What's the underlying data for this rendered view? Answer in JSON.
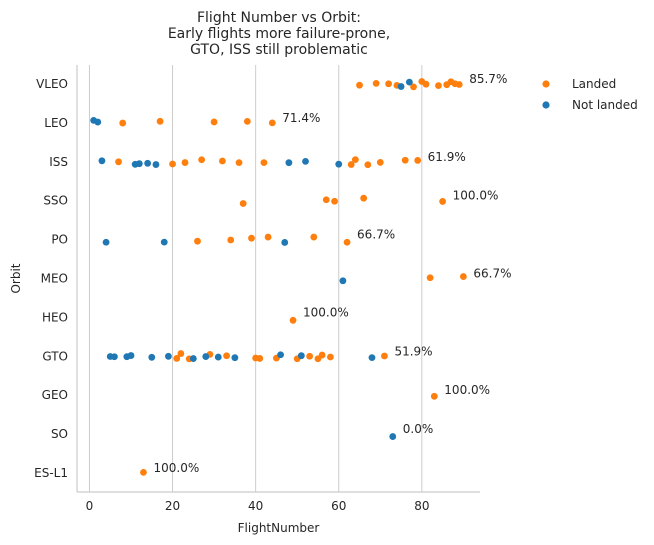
{
  "chart_data": {
    "type": "scatter",
    "title": [
      "Flight Number vs Orbit:",
      "Early flights more failure-prone,",
      "GTO, ISS still problematic"
    ],
    "xlabel": "FlightNumber",
    "ylabel": "Orbit",
    "xlim": [
      -3,
      94
    ],
    "xticks": [
      0,
      20,
      40,
      60,
      80
    ],
    "categories": [
      "VLEO",
      "LEO",
      "ISS",
      "SSO",
      "PO",
      "MEO",
      "HEO",
      "GTO",
      "GEO",
      "SO",
      "ES-L1"
    ],
    "grid": "vertical",
    "legend": "outside-right",
    "colors": {
      "Landed": "#ff7f0e",
      "Not landed": "#1f77b4"
    },
    "series": [
      {
        "name": "Landed",
        "points": [
          {
            "x": 65,
            "orbit": "VLEO"
          },
          {
            "x": 69,
            "orbit": "VLEO"
          },
          {
            "x": 72,
            "orbit": "VLEO"
          },
          {
            "x": 74,
            "orbit": "VLEO"
          },
          {
            "x": 78,
            "orbit": "VLEO"
          },
          {
            "x": 80,
            "orbit": "VLEO"
          },
          {
            "x": 81,
            "orbit": "VLEO"
          },
          {
            "x": 84,
            "orbit": "VLEO"
          },
          {
            "x": 86,
            "orbit": "VLEO"
          },
          {
            "x": 87,
            "orbit": "VLEO"
          },
          {
            "x": 88,
            "orbit": "VLEO"
          },
          {
            "x": 89,
            "orbit": "VLEO"
          },
          {
            "x": 8,
            "orbit": "LEO"
          },
          {
            "x": 17,
            "orbit": "LEO"
          },
          {
            "x": 30,
            "orbit": "LEO"
          },
          {
            "x": 38,
            "orbit": "LEO"
          },
          {
            "x": 44,
            "orbit": "LEO"
          },
          {
            "x": 7,
            "orbit": "ISS"
          },
          {
            "x": 20,
            "orbit": "ISS"
          },
          {
            "x": 23,
            "orbit": "ISS"
          },
          {
            "x": 27,
            "orbit": "ISS"
          },
          {
            "x": 32,
            "orbit": "ISS"
          },
          {
            "x": 36,
            "orbit": "ISS"
          },
          {
            "x": 42,
            "orbit": "ISS"
          },
          {
            "x": 63,
            "orbit": "ISS"
          },
          {
            "x": 64,
            "orbit": "ISS"
          },
          {
            "x": 67,
            "orbit": "ISS"
          },
          {
            "x": 70,
            "orbit": "ISS"
          },
          {
            "x": 76,
            "orbit": "ISS"
          },
          {
            "x": 79,
            "orbit": "ISS"
          },
          {
            "x": 37,
            "orbit": "SSO"
          },
          {
            "x": 57,
            "orbit": "SSO"
          },
          {
            "x": 59,
            "orbit": "SSO"
          },
          {
            "x": 66,
            "orbit": "SSO"
          },
          {
            "x": 85,
            "orbit": "SSO"
          },
          {
            "x": 26,
            "orbit": "PO"
          },
          {
            "x": 34,
            "orbit": "PO"
          },
          {
            "x": 39,
            "orbit": "PO"
          },
          {
            "x": 43,
            "orbit": "PO"
          },
          {
            "x": 54,
            "orbit": "PO"
          },
          {
            "x": 62,
            "orbit": "PO"
          },
          {
            "x": 82,
            "orbit": "MEO"
          },
          {
            "x": 90,
            "orbit": "MEO"
          },
          {
            "x": 49,
            "orbit": "HEO"
          },
          {
            "x": 21,
            "orbit": "GTO"
          },
          {
            "x": 22,
            "orbit": "GTO"
          },
          {
            "x": 24,
            "orbit": "GTO"
          },
          {
            "x": 29,
            "orbit": "GTO"
          },
          {
            "x": 33,
            "orbit": "GTO"
          },
          {
            "x": 40,
            "orbit": "GTO"
          },
          {
            "x": 41,
            "orbit": "GTO"
          },
          {
            "x": 45,
            "orbit": "GTO"
          },
          {
            "x": 50,
            "orbit": "GTO"
          },
          {
            "x": 53,
            "orbit": "GTO"
          },
          {
            "x": 55,
            "orbit": "GTO"
          },
          {
            "x": 56,
            "orbit": "GTO"
          },
          {
            "x": 58,
            "orbit": "GTO"
          },
          {
            "x": 71,
            "orbit": "GTO"
          },
          {
            "x": 83,
            "orbit": "GEO"
          },
          {
            "x": 13,
            "orbit": "ES-L1"
          }
        ]
      },
      {
        "name": "Not landed",
        "points": [
          {
            "x": 75,
            "orbit": "VLEO"
          },
          {
            "x": 77,
            "orbit": "VLEO"
          },
          {
            "x": 1,
            "orbit": "LEO"
          },
          {
            "x": 2,
            "orbit": "LEO"
          },
          {
            "x": 3,
            "orbit": "ISS"
          },
          {
            "x": 11,
            "orbit": "ISS"
          },
          {
            "x": 12,
            "orbit": "ISS"
          },
          {
            "x": 14,
            "orbit": "ISS"
          },
          {
            "x": 16,
            "orbit": "ISS"
          },
          {
            "x": 48,
            "orbit": "ISS"
          },
          {
            "x": 52,
            "orbit": "ISS"
          },
          {
            "x": 60,
            "orbit": "ISS"
          },
          {
            "x": 4,
            "orbit": "PO"
          },
          {
            "x": 18,
            "orbit": "PO"
          },
          {
            "x": 47,
            "orbit": "PO"
          },
          {
            "x": 61,
            "orbit": "MEO"
          },
          {
            "x": 5,
            "orbit": "GTO"
          },
          {
            "x": 6,
            "orbit": "GTO"
          },
          {
            "x": 9,
            "orbit": "GTO"
          },
          {
            "x": 10,
            "orbit": "GTO"
          },
          {
            "x": 15,
            "orbit": "GTO"
          },
          {
            "x": 19,
            "orbit": "GTO"
          },
          {
            "x": 25,
            "orbit": "GTO"
          },
          {
            "x": 28,
            "orbit": "GTO"
          },
          {
            "x": 31,
            "orbit": "GTO"
          },
          {
            "x": 35,
            "orbit": "GTO"
          },
          {
            "x": 46,
            "orbit": "GTO"
          },
          {
            "x": 51,
            "orbit": "GTO"
          },
          {
            "x": 68,
            "orbit": "GTO"
          },
          {
            "x": 73,
            "orbit": "SO"
          }
        ]
      }
    ],
    "annotations": [
      {
        "orbit": "VLEO",
        "x": 89,
        "text": "85.7%"
      },
      {
        "orbit": "LEO",
        "x": 44,
        "text": "71.4%"
      },
      {
        "orbit": "ISS",
        "x": 79,
        "text": "61.9%"
      },
      {
        "orbit": "SSO",
        "x": 85,
        "text": "100.0%"
      },
      {
        "orbit": "PO",
        "x": 62,
        "text": "66.7%"
      },
      {
        "orbit": "MEO",
        "x": 90,
        "text": "66.7%"
      },
      {
        "orbit": "HEO",
        "x": 49,
        "text": "100.0%"
      },
      {
        "orbit": "GTO",
        "x": 71,
        "text": "51.9%"
      },
      {
        "orbit": "GEO",
        "x": 83,
        "text": "100.0%"
      },
      {
        "orbit": "SO",
        "x": 73,
        "text": "0.0%"
      },
      {
        "orbit": "ES-L1",
        "x": 13,
        "text": "100.0%"
      }
    ]
  }
}
